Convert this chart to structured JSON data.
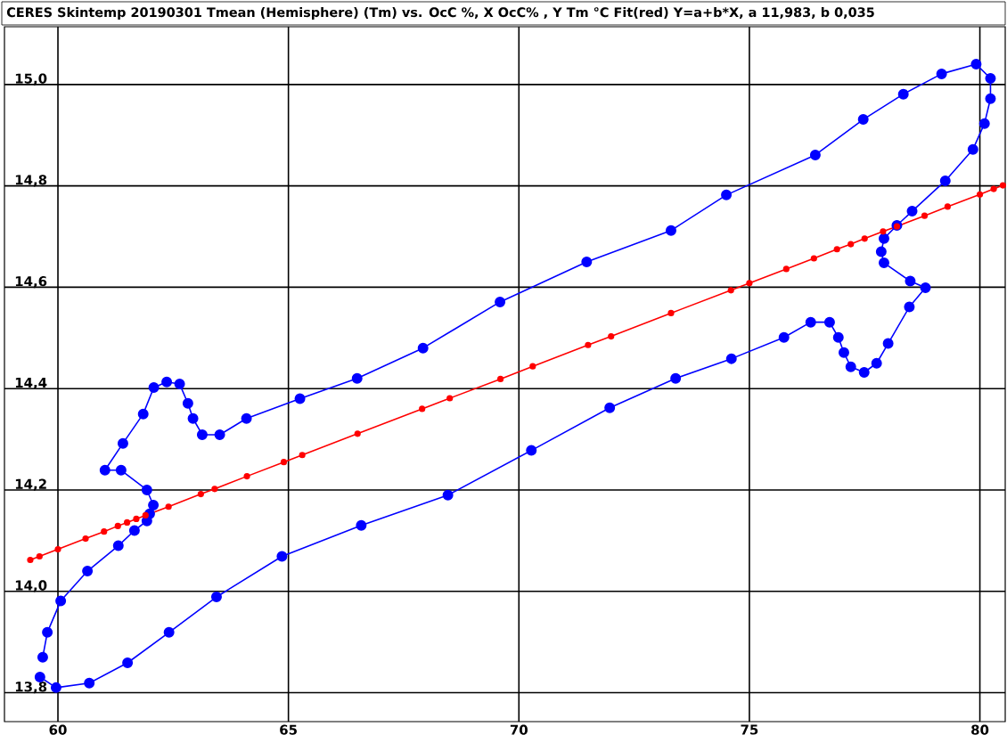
{
  "chart_data": {
    "type": "line",
    "title": "CERES Skintemp 20190301 Tmean (Hemisphere) (Tm) vs. OcC %, X OcC% , Y Tm  °C Fit(red) Y=a+b*X, a 11,983, b 0,035",
    "xlim": [
      58.84,
      80.55
    ],
    "ylim": [
      13.743,
      15.114
    ],
    "xticks": [
      60,
      65,
      70,
      75,
      80
    ],
    "yticks": [
      {
        "value": 13.8,
        "label": "13,8"
      },
      {
        "value": 14.0,
        "label": "14,0"
      },
      {
        "value": 14.2,
        "label": "14,2"
      },
      {
        "value": 14.4,
        "label": "14,4"
      },
      {
        "value": 14.6,
        "label": "14,6"
      },
      {
        "value": 14.8,
        "label": "14,8"
      },
      {
        "value": 15.0,
        "label": "15,0"
      }
    ],
    "grid": true,
    "marker": "circle",
    "line_style": "solid",
    "series": [
      {
        "color": "#0000ff",
        "x": [
          59.61,
          59.96,
          60.68,
          61.51,
          62.41,
          63.44,
          64.86,
          66.58,
          68.46,
          70.27,
          71.97,
          73.4,
          74.61,
          75.75,
          76.33,
          76.74,
          76.93,
          77.05,
          77.2,
          77.49,
          77.76,
          78.01,
          78.47,
          78.82,
          78.49,
          77.92,
          77.86,
          77.92,
          78.2,
          78.53,
          79.25,
          79.85,
          80.1,
          80.23,
          80.23,
          79.92,
          79.17,
          78.34,
          77.47,
          76.43,
          74.5,
          73.3,
          71.47,
          69.59,
          67.92,
          66.49,
          65.25,
          64.09,
          63.51,
          63.13,
          62.93,
          62.82,
          62.64,
          62.36,
          62.08,
          61.85,
          61.41,
          61.02,
          61.37,
          61.93,
          62.07,
          61.99,
          61.93,
          61.66,
          61.31,
          60.64,
          60.06,
          59.77,
          59.67
        ],
        "values": [
          13.831,
          13.81,
          13.819,
          13.859,
          13.919,
          13.989,
          14.069,
          14.13,
          14.19,
          14.278,
          14.362,
          14.42,
          14.459,
          14.501,
          14.531,
          14.531,
          14.501,
          14.471,
          14.443,
          14.432,
          14.45,
          14.489,
          14.561,
          14.599,
          14.612,
          14.648,
          14.67,
          14.696,
          14.722,
          14.75,
          14.81,
          14.872,
          14.923,
          14.972,
          15.012,
          15.04,
          15.021,
          14.981,
          14.931,
          14.861,
          14.782,
          14.712,
          14.65,
          14.571,
          14.48,
          14.42,
          14.38,
          14.341,
          14.309,
          14.309,
          14.341,
          14.371,
          14.409,
          14.413,
          14.402,
          14.35,
          14.292,
          14.239,
          14.239,
          14.2,
          14.17,
          14.153,
          14.139,
          14.12,
          14.09,
          14.04,
          13.981,
          13.919,
          13.87
        ]
      },
      {
        "color": "#ff0000",
        "x": [
          59.4,
          59.6,
          60.0,
          60.6,
          61.0,
          61.3,
          61.5,
          61.7,
          61.9,
          62.4,
          63.1,
          63.4,
          64.1,
          64.9,
          65.3,
          66.5,
          67.9,
          68.5,
          69.6,
          70.3,
          71.5,
          72.0,
          73.3,
          74.6,
          75.0,
          75.8,
          76.4,
          76.9,
          77.2,
          77.5,
          77.9,
          78.2,
          78.8,
          79.3,
          80.0,
          80.3,
          80.5
        ],
        "values": [
          14.062,
          14.069,
          14.083,
          14.104,
          14.118,
          14.129,
          14.136,
          14.143,
          14.15,
          14.167,
          14.192,
          14.202,
          14.227,
          14.255,
          14.269,
          14.311,
          14.36,
          14.381,
          14.419,
          14.444,
          14.486,
          14.503,
          14.549,
          14.594,
          14.608,
          14.636,
          14.657,
          14.675,
          14.685,
          14.696,
          14.71,
          14.72,
          14.741,
          14.759,
          14.783,
          14.794,
          14.801
        ]
      }
    ]
  }
}
